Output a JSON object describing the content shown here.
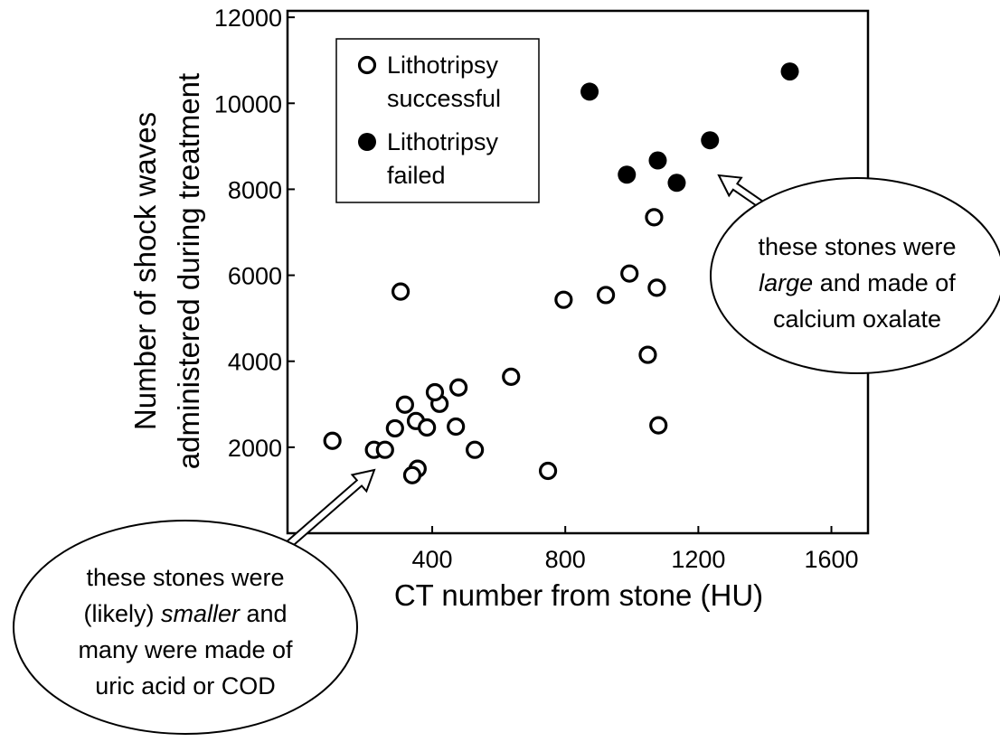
{
  "chart_data": {
    "type": "scatter",
    "xlabel": "CT number from stone (HU)",
    "ylabel": [
      "Number of shock waves",
      "administered during treatment"
    ],
    "xlim": [
      -35,
      1710
    ],
    "ylim": [
      0,
      12150
    ],
    "xticks": [
      400,
      800,
      1200,
      1600
    ],
    "yticks": [
      2000,
      4000,
      6000,
      8000,
      10000,
      12000
    ],
    "legend": "upper left",
    "series": [
      {
        "name": "Lithotripsy successful",
        "color": "#000000",
        "filled": false,
        "x": [
          100,
          225,
          258,
          288,
          318,
          351,
          384,
          356,
          340,
          422,
          408,
          471,
          479,
          528,
          305,
          637,
          748,
          795,
          922,
          993,
          1067,
          1075,
          1048,
          1080
        ],
        "values": [
          2150,
          1940,
          1940,
          2440,
          2990,
          2610,
          2460,
          1500,
          1350,
          3010,
          3280,
          2480,
          3390,
          1940,
          5620,
          3640,
          1450,
          5430,
          5540,
          6040,
          7350,
          5710,
          4150,
          2510
        ]
      },
      {
        "name": "Lithotripsy failed",
        "color": "#000000",
        "filled": true,
        "x": [
          873,
          985,
          1078,
          1135,
          1235,
          1475
        ],
        "values": [
          10270,
          8340,
          8670,
          8150,
          9140,
          10740
        ]
      }
    ],
    "annotations": [
      {
        "lines": [
          [
            {
              "text": "these stones were"
            }
          ],
          [
            {
              "text": "large",
              "italic": true
            },
            {
              "text": " and made of"
            }
          ],
          [
            {
              "text": "calcium oxalate"
            }
          ]
        ]
      },
      {
        "lines": [
          [
            {
              "text": "these stones were"
            }
          ],
          [
            {
              "text": "(likely) "
            },
            {
              "text": "smaller",
              "italic": true
            },
            {
              "text": " and"
            }
          ],
          [
            {
              "text": "many were made of"
            }
          ],
          [
            {
              "text": "uric acid or COD"
            }
          ]
        ]
      }
    ]
  }
}
